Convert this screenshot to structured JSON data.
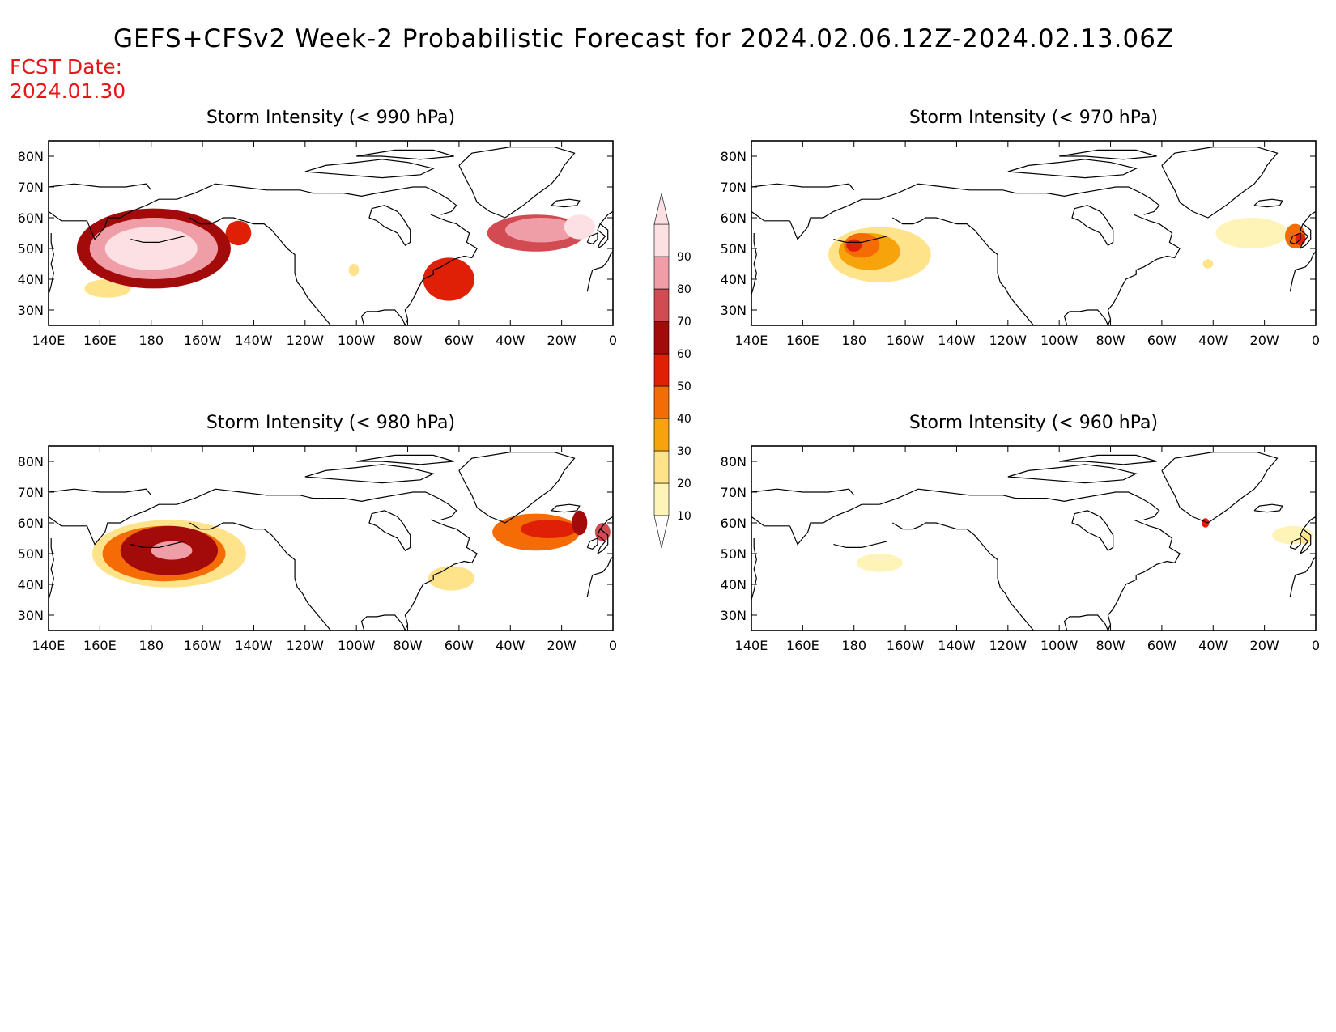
{
  "title": "GEFS+CFSv2 Week-2 Probabilistic Forecast for 2024.02.06.12Z-2024.02.13.06Z",
  "forecast_date_label": "FCST Date:",
  "forecast_date": "2024.01.30",
  "lat_labels": [
    "80N",
    "70N",
    "60N",
    "50N",
    "40N",
    "30N"
  ],
  "lat_values": [
    80,
    70,
    60,
    50,
    40,
    30
  ],
  "lon_labels": [
    "140E",
    "160E",
    "180",
    "160W",
    "140W",
    "120W",
    "100W",
    "80W",
    "60W",
    "40W",
    "20W",
    "0"
  ],
  "lon_values": [
    140,
    160,
    180,
    200,
    220,
    240,
    260,
    280,
    300,
    320,
    340,
    360
  ],
  "colors": {
    "frame": "#000000",
    "title_red": "#e8141a"
  },
  "colorbar": {
    "labels": [
      "10",
      "20",
      "30",
      "40",
      "50",
      "60",
      "70",
      "80",
      "90"
    ],
    "levels": [
      10,
      20,
      30,
      40,
      50,
      60,
      70,
      80,
      90
    ],
    "colors": [
      "#fff4b8",
      "#ffe38a",
      "#f7a30c",
      "#f56b06",
      "#e02006",
      "#a30a0a",
      "#d24a52",
      "#ef9ea7",
      "#fde0e4"
    ]
  },
  "panels": [
    {
      "id": "990",
      "title": "Storm Intensity (< 990 hPa)",
      "blobs": [
        {
          "lon": 181,
          "lat": 50,
          "rlon": 30,
          "rlat": 13,
          "p": 60
        },
        {
          "lon": 181,
          "lat": 50,
          "rlon": 25,
          "rlat": 10,
          "p": 80
        },
        {
          "lon": 180,
          "lat": 50,
          "rlon": 18,
          "rlat": 7,
          "p": 90
        },
        {
          "lon": 163,
          "lat": 37,
          "rlon": 9,
          "rlat": 3,
          "p": 20
        },
        {
          "lon": 214,
          "lat": 55,
          "rlon": 5,
          "rlat": 4,
          "p": 50
        },
        {
          "lon": 296,
          "lat": 40,
          "rlon": 10,
          "rlat": 7,
          "p": 50
        },
        {
          "lon": 330,
          "lat": 55,
          "rlon": 19,
          "rlat": 6,
          "p": 70
        },
        {
          "lon": 332,
          "lat": 56,
          "rlon": 14,
          "rlat": 4,
          "p": 80
        },
        {
          "lon": 347,
          "lat": 57,
          "rlon": 6,
          "rlat": 4,
          "p": 90
        },
        {
          "lon": 259,
          "lat": 43,
          "rlon": 2,
          "rlat": 2,
          "p": 20
        }
      ]
    },
    {
      "id": "970",
      "title": "Storm Intensity (< 970 hPa)",
      "blobs": [
        {
          "lon": 190,
          "lat": 48,
          "rlon": 20,
          "rlat": 9,
          "p": 20
        },
        {
          "lon": 186,
          "lat": 49,
          "rlon": 12,
          "rlat": 6,
          "p": 30
        },
        {
          "lon": 183,
          "lat": 51,
          "rlon": 7,
          "rlat": 4,
          "p": 40
        },
        {
          "lon": 180,
          "lat": 51,
          "rlon": 3,
          "rlat": 2,
          "p": 50
        },
        {
          "lon": 335,
          "lat": 55,
          "rlon": 14,
          "rlat": 5,
          "p": 10
        },
        {
          "lon": 352,
          "lat": 54,
          "rlon": 4,
          "rlat": 4,
          "p": 40
        },
        {
          "lon": 354,
          "lat": 53,
          "rlon": 2,
          "rlat": 2,
          "p": 50
        },
        {
          "lon": 318,
          "lat": 45,
          "rlon": 2,
          "rlat": 1.5,
          "p": 20
        }
      ]
    },
    {
      "id": "980",
      "title": "Storm Intensity (< 980 hPa)",
      "blobs": [
        {
          "lon": 187,
          "lat": 50,
          "rlon": 30,
          "rlat": 11,
          "p": 20
        },
        {
          "lon": 185,
          "lat": 50,
          "rlon": 24,
          "rlat": 9,
          "p": 40
        },
        {
          "lon": 187,
          "lat": 51,
          "rlon": 19,
          "rlat": 8,
          "p": 60
        },
        {
          "lon": 188,
          "lat": 51,
          "rlon": 8,
          "rlat": 3,
          "p": 80
        },
        {
          "lon": 330,
          "lat": 57,
          "rlon": 17,
          "rlat": 6,
          "p": 40
        },
        {
          "lon": 335,
          "lat": 58,
          "rlon": 11,
          "rlat": 3,
          "p": 50
        },
        {
          "lon": 347,
          "lat": 60,
          "rlon": 3,
          "rlat": 4,
          "p": 60
        },
        {
          "lon": 356,
          "lat": 57,
          "rlon": 3,
          "rlat": 3,
          "p": 70
        },
        {
          "lon": 297,
          "lat": 42,
          "rlon": 9,
          "rlat": 4,
          "p": 20
        }
      ]
    },
    {
      "id": "960",
      "title": "Storm Intensity (< 960 hPa)",
      "blobs": [
        {
          "lon": 190,
          "lat": 47,
          "rlon": 9,
          "rlat": 3,
          "p": 10
        },
        {
          "lon": 317,
          "lat": 60,
          "rlon": 1.5,
          "rlat": 1.5,
          "p": 50
        },
        {
          "lon": 351,
          "lat": 56,
          "rlon": 8,
          "rlat": 3,
          "p": 10
        },
        {
          "lon": 356,
          "lat": 55,
          "rlon": 2,
          "rlat": 2,
          "p": 20
        }
      ]
    }
  ]
}
